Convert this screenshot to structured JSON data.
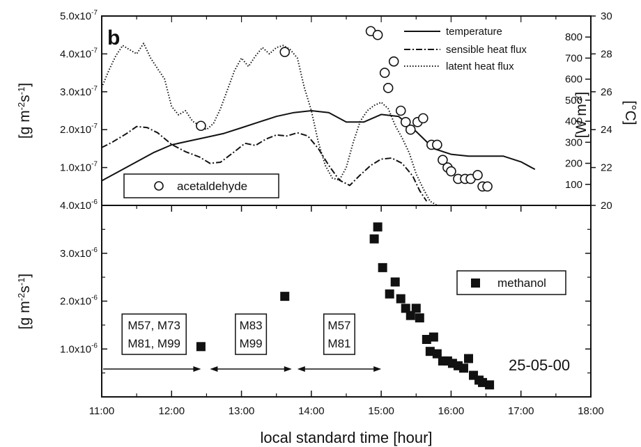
{
  "chart_data": [
    {
      "panel": "b",
      "type": "line",
      "xlabel": "",
      "ylabel_left": "[g m-2s-1]",
      "ylabel_right_inner": "[W m-2]",
      "ylabel_right_outer": "[°C]",
      "xlim": [
        11,
        18
      ],
      "ylim_left": [
        0,
        5e-07
      ],
      "ylim_heat_flux": [
        0,
        900
      ],
      "ylim_temperature": [
        20,
        30
      ],
      "left_ticks": [
        "1.0x10-7",
        "2.0x10-7",
        "3.0x10-7",
        "4.0x10-7",
        "5.0x10-7"
      ],
      "heat_flux_ticks": [
        "100",
        "200",
        "300",
        "400",
        "500",
        "600",
        "700",
        "800"
      ],
      "temperature_ticks": [
        "20",
        "22",
        "24",
        "26",
        "28",
        "30"
      ],
      "legend": {
        "position": "top-right",
        "entries": [
          {
            "label": "temperature",
            "style": "solid"
          },
          {
            "label": "sensible heat flux",
            "style": "dashdot"
          },
          {
            "label": "latent heat flux",
            "style": "dotted"
          }
        ]
      },
      "acetaldehyde_label": "acetaldehyde",
      "series": [
        {
          "name": "temperature",
          "axis": "temperature",
          "x": [
            11.0,
            11.25,
            11.5,
            11.75,
            12.0,
            12.25,
            12.5,
            12.75,
            13.0,
            13.25,
            13.5,
            13.75,
            14.0,
            14.25,
            14.5,
            14.75,
            15.0,
            15.25,
            15.5,
            15.75,
            16.0,
            16.25,
            16.5,
            16.75,
            17.0,
            17.2
          ],
          "y": [
            21.3,
            21.8,
            22.3,
            22.8,
            23.2,
            23.4,
            23.6,
            23.8,
            24.1,
            24.4,
            24.7,
            24.9,
            25.0,
            24.9,
            24.4,
            24.4,
            24.8,
            24.7,
            23.9,
            23.0,
            22.7,
            22.6,
            22.6,
            22.6,
            22.3,
            21.9
          ]
        },
        {
          "name": "sensible heat flux",
          "axis": "heat_flux",
          "x": [
            11.0,
            11.15,
            11.35,
            11.5,
            11.65,
            11.8,
            12.0,
            12.2,
            12.4,
            12.55,
            12.7,
            12.9,
            13.05,
            13.2,
            13.35,
            13.5,
            13.65,
            13.8,
            13.95,
            14.1,
            14.25,
            14.4,
            14.55,
            14.7,
            14.85,
            15.0,
            15.15,
            15.3,
            15.45,
            15.55,
            15.65
          ],
          "y": [
            275,
            300,
            340,
            375,
            370,
            345,
            290,
            255,
            230,
            200,
            205,
            255,
            295,
            285,
            315,
            335,
            330,
            345,
            330,
            270,
            190,
            120,
            95,
            145,
            190,
            220,
            225,
            200,
            140,
            70,
            20
          ]
        },
        {
          "name": "latent heat flux",
          "axis": "heat_flux",
          "x": [
            11.0,
            11.1,
            11.2,
            11.3,
            11.4,
            11.5,
            11.6,
            11.7,
            11.8,
            11.9,
            12.0,
            12.1,
            12.2,
            12.3,
            12.4,
            12.5,
            12.6,
            12.7,
            12.8,
            12.9,
            13.0,
            13.1,
            13.2,
            13.3,
            13.4,
            13.5,
            13.6,
            13.7,
            13.8,
            13.9,
            14.0,
            14.1,
            14.2,
            14.3,
            14.4,
            14.5,
            14.6,
            14.7,
            14.8,
            14.9,
            15.0,
            15.1,
            15.2,
            15.3,
            15.4,
            15.5,
            15.6,
            15.7,
            15.8
          ],
          "y": [
            560,
            640,
            710,
            760,
            740,
            720,
            770,
            700,
            650,
            600,
            470,
            430,
            450,
            400,
            380,
            360,
            390,
            460,
            550,
            640,
            700,
            660,
            710,
            750,
            720,
            750,
            760,
            740,
            700,
            560,
            450,
            300,
            190,
            130,
            120,
            180,
            300,
            400,
            450,
            475,
            490,
            460,
            380,
            320,
            250,
            150,
            80,
            20,
            0
          ]
        },
        {
          "name": "acetaldehyde",
          "axis": "left",
          "type": "scatter",
          "marker": "open-circle",
          "x": [
            12.42,
            13.62,
            14.85,
            14.95,
            15.05,
            15.1,
            15.18,
            15.28,
            15.35,
            15.42,
            15.52,
            15.6,
            15.72,
            15.8,
            15.88,
            15.95,
            16.0,
            16.1,
            16.2,
            16.28,
            16.38,
            16.45,
            16.52
          ],
          "y": [
            2.1e-07,
            4.05e-07,
            4.6e-07,
            4.5e-07,
            3.5e-07,
            3.1e-07,
            3.8e-07,
            2.5e-07,
            2.2e-07,
            2e-07,
            2.2e-07,
            2.3e-07,
            1.6e-07,
            1.6e-07,
            1.2e-07,
            1e-07,
            9e-08,
            7e-08,
            7e-08,
            7e-08,
            8e-08,
            5e-08,
            5e-08
          ]
        }
      ]
    },
    {
      "type": "scatter",
      "xlabel": "local standard time [hour]",
      "ylabel": "[g m-2s-1]",
      "xlim": [
        11,
        18
      ],
      "ylim": [
        0,
        4e-06
      ],
      "x_ticks": [
        "11:00",
        "12:00",
        "13:00",
        "14:00",
        "15:00",
        "16:00",
        "17:00",
        "18:00"
      ],
      "y_ticks": [
        "1.0x10-6",
        "2.0x10-6",
        "3.0x10-6",
        "4.0x10-6"
      ],
      "legend": {
        "position": "right",
        "entries": [
          {
            "label": "methanol",
            "marker": "filled-square"
          }
        ]
      },
      "date_label": "25-05-00",
      "annotations": [
        {
          "lines": [
            "M57, M73",
            "M81, M99"
          ],
          "x_range": [
            11.0,
            12.42
          ]
        },
        {
          "lines": [
            "M83",
            "M99"
          ],
          "x_range": [
            12.55,
            13.72
          ]
        },
        {
          "lines": [
            "M57",
            "M81"
          ],
          "x_range": [
            13.8,
            15.0
          ]
        }
      ],
      "series": [
        {
          "name": "methanol",
          "x": [
            12.42,
            13.62,
            14.9,
            14.95,
            15.02,
            15.12,
            15.2,
            15.28,
            15.35,
            15.42,
            15.5,
            15.55,
            15.65,
            15.7,
            15.75,
            15.8,
            15.88,
            15.95,
            16.02,
            16.1,
            16.18,
            16.25,
            16.32,
            16.4,
            16.45,
            16.55
          ],
          "y": [
            1.05e-06,
            2.1e-06,
            3.3e-06,
            3.55e-06,
            2.7e-06,
            2.15e-06,
            2.4e-06,
            2.05e-06,
            1.85e-06,
            1.7e-06,
            1.85e-06,
            1.65e-06,
            1.2e-06,
            9.5e-07,
            1.25e-06,
            9e-07,
            7.5e-07,
            7.5e-07,
            7e-07,
            6.5e-07,
            6e-07,
            8e-07,
            4.5e-07,
            3.5e-07,
            3e-07,
            2.5e-07
          ]
        }
      ]
    }
  ]
}
